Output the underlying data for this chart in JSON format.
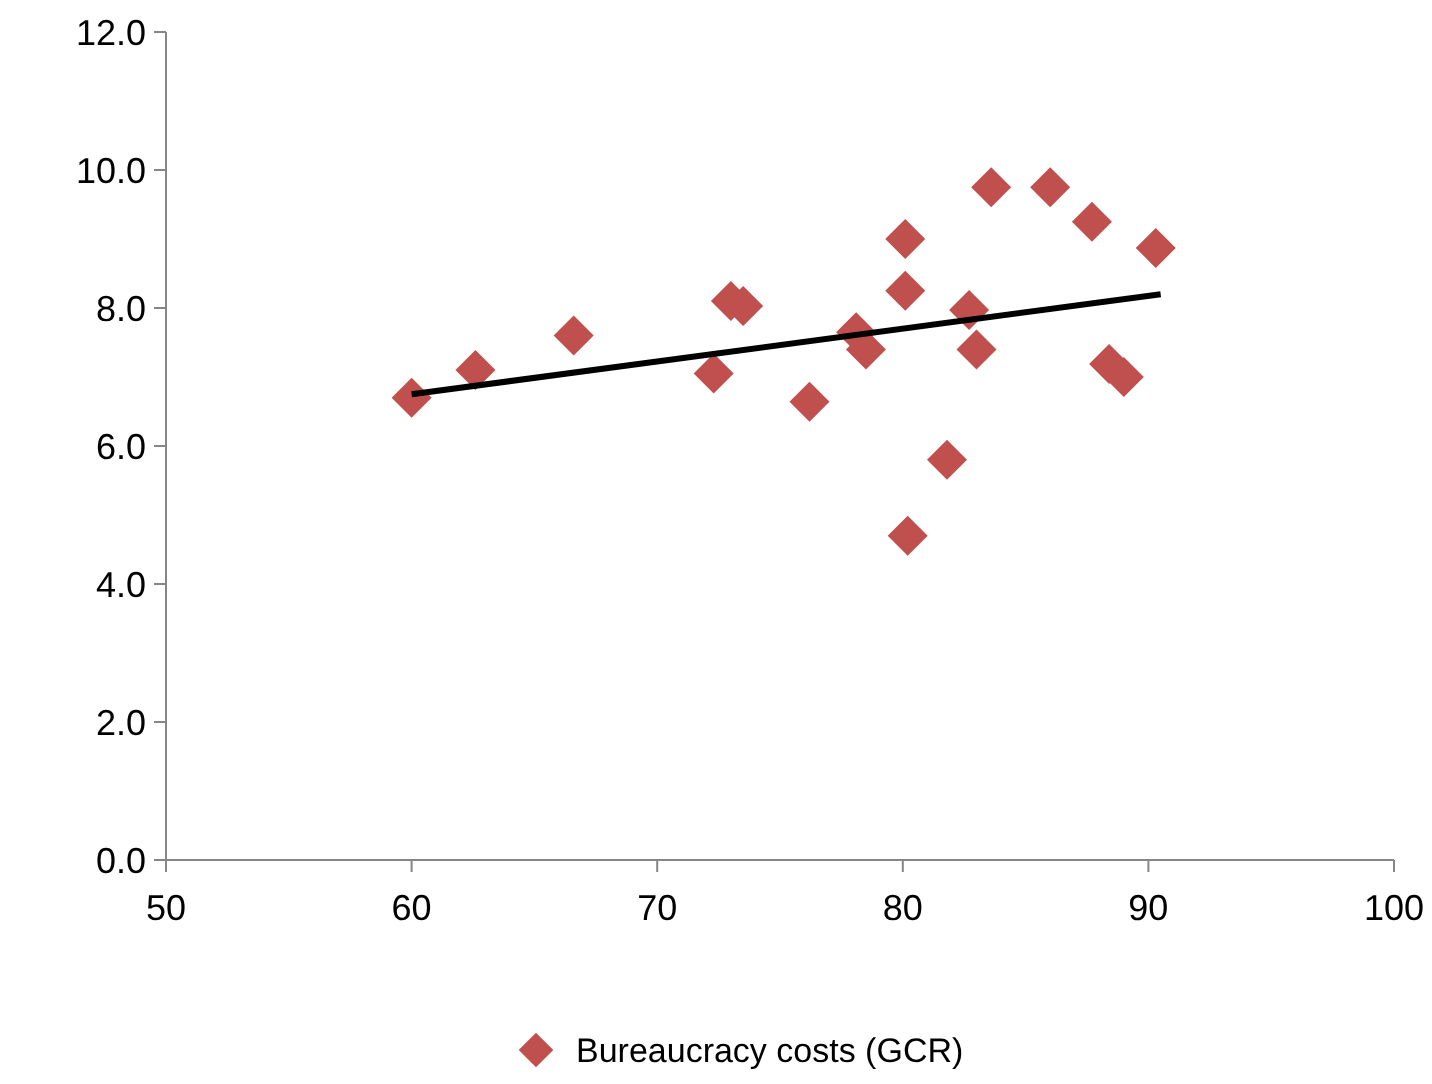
{
  "chart_data": {
    "type": "scatter",
    "legend": "bottom",
    "grid": false,
    "xlim": [
      50,
      100
    ],
    "xticks": [
      50,
      60,
      70,
      80,
      90,
      100
    ],
    "ylim": [
      0,
      12
    ],
    "yticks": [
      {
        "value": 0,
        "label": "0.0"
      },
      {
        "value": 2,
        "label": "2.0"
      },
      {
        "value": 4,
        "label": "4.0"
      },
      {
        "value": 6,
        "label": "6.0"
      },
      {
        "value": 8,
        "label": "8.0"
      },
      {
        "value": 10,
        "label": "10.0"
      },
      {
        "value": 12,
        "label": "12.0"
      }
    ],
    "series": [
      {
        "name": "Bureaucracy costs (GCR)",
        "marker": "diamond",
        "color": "#c0504d",
        "x": [
          60,
          62.6,
          66.6,
          72.3,
          73.0,
          73.5,
          76.2,
          78.1,
          78.5,
          80.1,
          80.1,
          80.2,
          81.8,
          82.7,
          83.0,
          83.6,
          86.0,
          87.7,
          88.4,
          89.0,
          90.3
        ],
        "values": [
          6.7,
          7.1,
          7.6,
          7.05,
          8.1,
          8.03,
          6.64,
          7.65,
          7.4,
          8.25,
          9.0,
          4.7,
          5.8,
          7.97,
          7.4,
          9.75,
          9.75,
          9.25,
          7.19,
          7.0,
          8.87
        ]
      },
      {
        "type": "line",
        "marker": "none",
        "color": "#000000",
        "x": [
          60,
          90.5
        ],
        "values": [
          6.75,
          8.2
        ]
      }
    ]
  }
}
